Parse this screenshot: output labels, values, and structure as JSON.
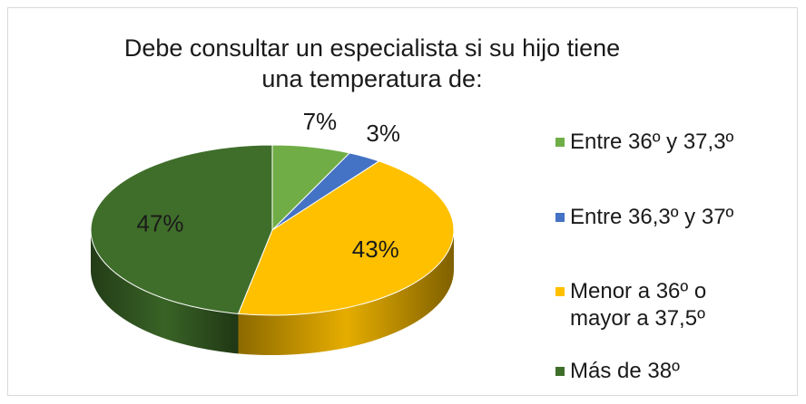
{
  "chart_data": {
    "type": "pie",
    "title": "Debe consultar un especialista si su hijo tiene una temperatura de:",
    "categories": [
      "Entre 36º y 37,3º",
      "Entre 36,3º y 37º",
      "Menor a 36º o mayor a 37,5º",
      "Más de 38º"
    ],
    "values": [
      7,
      3,
      43,
      47
    ],
    "value_labels": [
      "7%",
      "3%",
      "43%",
      "47%"
    ],
    "colors": [
      "#70ad47",
      "#4472c4",
      "#ffc000",
      "#3f6e2a"
    ],
    "legend": "right"
  }
}
